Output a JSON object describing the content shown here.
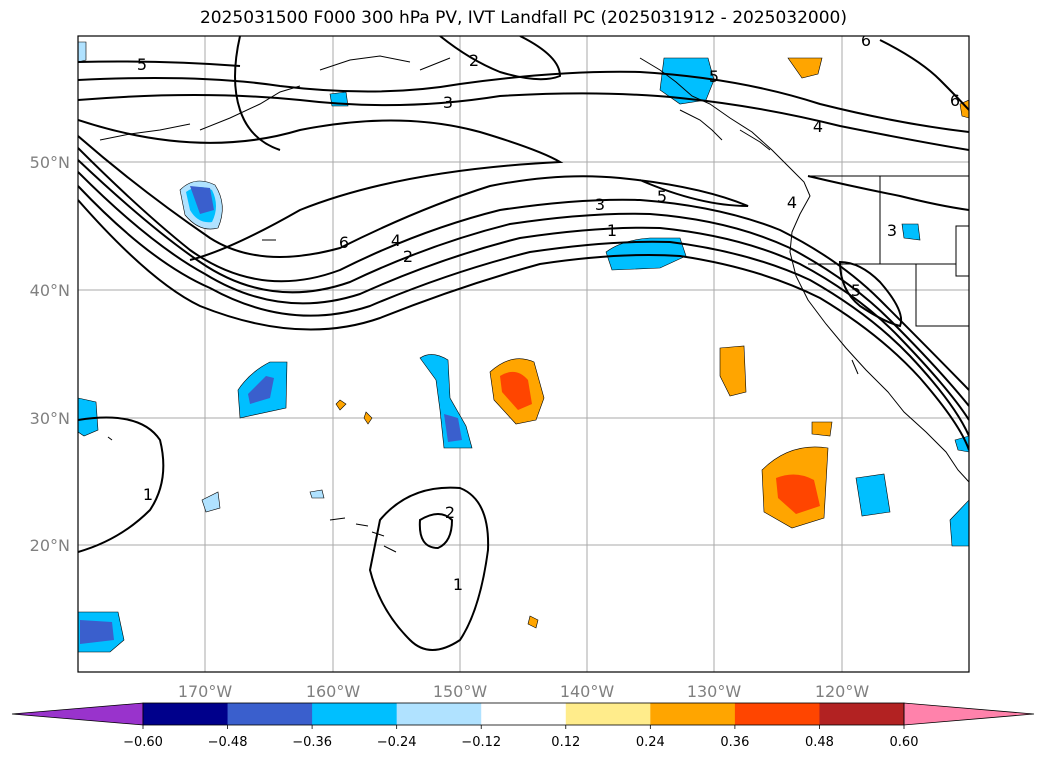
{
  "title": "2025031500 F000 300 hPa PV, IVT Landfall PC (2025031912 - 2025032000)",
  "map": {
    "lon_labels": [
      "170°W",
      "160°W",
      "150°W",
      "140°W",
      "130°W",
      "120°W"
    ],
    "lat_labels": [
      "50°N",
      "40°N",
      "30°N",
      "20°N"
    ],
    "contour_labels": [
      "5",
      "2",
      "3",
      "4",
      "6",
      "5",
      "3",
      "1",
      "6",
      "4",
      "2",
      "4",
      "3",
      "5",
      "5",
      "6",
      "1",
      "2",
      "1"
    ]
  },
  "colorbar": {
    "ticks": [
      "−0.60",
      "−0.48",
      "−0.36",
      "−0.24",
      "−0.12",
      "0.12",
      "0.24",
      "0.36",
      "0.48",
      "0.60"
    ],
    "colors": [
      "#9933cc",
      "#00008b",
      "#3a5fcd",
      "#00bfff",
      "#b0e2ff",
      "#ffffff",
      "#ffec8b",
      "#ffa500",
      "#ff4500",
      "#b22222",
      "#ff82ab",
      "#ff82ab"
    ]
  }
}
